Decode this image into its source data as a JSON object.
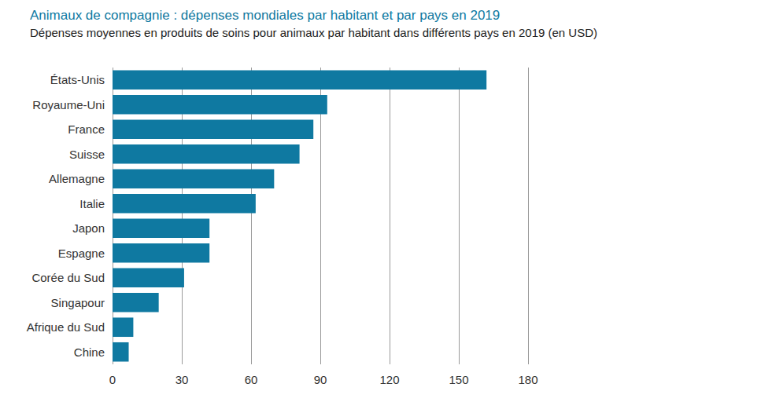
{
  "chart_data": {
    "type": "bar",
    "orientation": "horizontal",
    "title": "Animaux de compagnie : dépenses mondiales par habitant et par pays en 2019",
    "subtitle": "Dépenses moyennes en produits de soins pour animaux par habitant dans différents pays en 2019 (en USD)",
    "categories": [
      "États-Unis",
      "Royaume-Uni",
      "France",
      "Suisse",
      "Allemagne",
      "Italie",
      "Japon",
      "Espagne",
      "Corée du Sud",
      "Singapour",
      "Afrique du Sud",
      "Chine"
    ],
    "values": [
      162,
      93,
      87,
      81,
      70,
      62,
      42,
      42,
      31,
      20,
      9,
      7
    ],
    "color": "#0f79a1",
    "xlim": [
      0,
      180
    ],
    "xticks": [
      0,
      30,
      60,
      90,
      120,
      150,
      180
    ],
    "grid": true
  }
}
